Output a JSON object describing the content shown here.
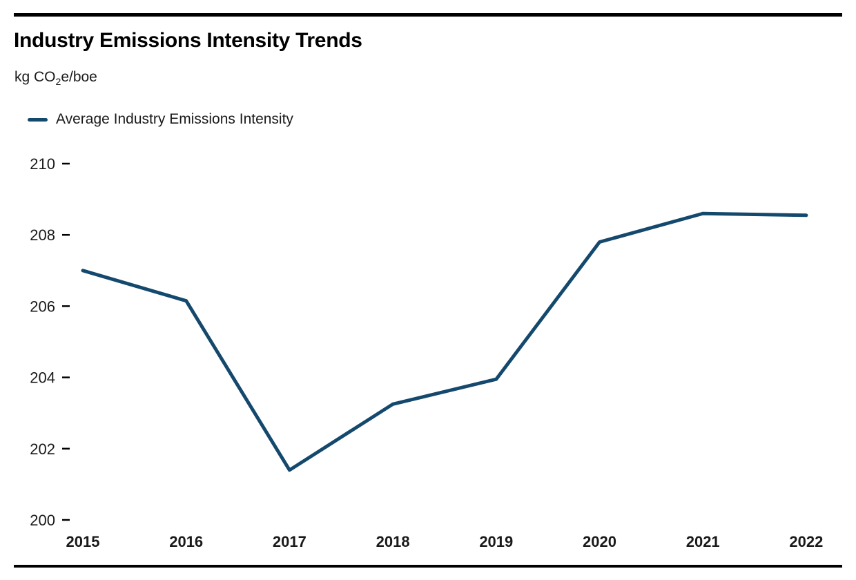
{
  "header": {
    "title": "Industry Emissions Intensity Trends",
    "unit_prefix": "kg CO",
    "unit_sub": "2",
    "unit_suffix": "e/boe"
  },
  "legend": {
    "label": "Average Industry Emissions Intensity",
    "swatch_color": "#14496d"
  },
  "colors": {
    "series_line": "#14496d",
    "text": "#1a1a1a",
    "rule": "#000000",
    "background": "#ffffff"
  },
  "chart_data": {
    "type": "line",
    "title": "Industry Emissions Intensity Trends",
    "ylabel": "kg CO2e/boe",
    "x": [
      2015,
      2016,
      2017,
      2018,
      2019,
      2020,
      2021,
      2022
    ],
    "series": [
      {
        "name": "Average Industry Emissions Intensity",
        "color": "#14496d",
        "values": [
          207.0,
          206.15,
          201.4,
          203.25,
          203.95,
          207.8,
          208.6,
          208.55
        ]
      }
    ],
    "y_ticks": [
      210,
      208,
      206,
      204,
      202,
      200
    ],
    "ylim": [
      200,
      210
    ],
    "grid": false,
    "legend_position": "top-left"
  }
}
